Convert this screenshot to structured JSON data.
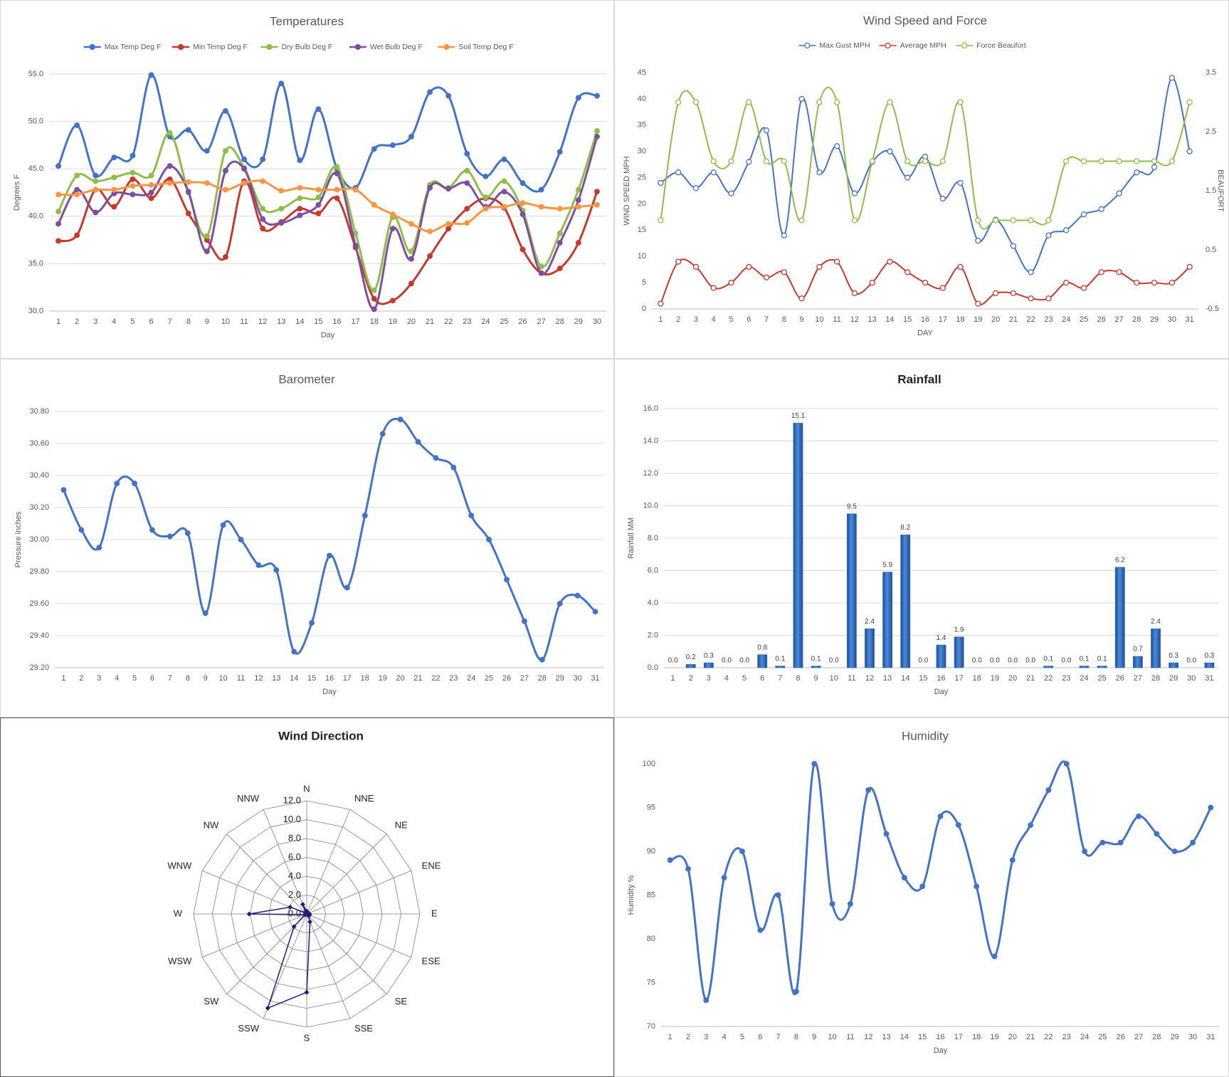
{
  "chart_data": [
    {
      "type": "line",
      "title": "Temperatures",
      "xlabel": "Day",
      "ylabel": "Degrees F",
      "categories": [
        1,
        2,
        3,
        4,
        5,
        6,
        7,
        8,
        9,
        10,
        11,
        12,
        13,
        14,
        15,
        16,
        17,
        18,
        19,
        20,
        21,
        22,
        23,
        24,
        25,
        26,
        27,
        28,
        29,
        30
      ],
      "series": [
        {
          "name": "Max Temp Deg F",
          "color": "#4472c4",
          "values": [
            45.3,
            49.6,
            44.3,
            46.2,
            46.4,
            54.9,
            48.4,
            49.1,
            46.9,
            51.1,
            46.0,
            46.0,
            54.0,
            45.9,
            51.3,
            45.0,
            43.0,
            47.1,
            47.5,
            48.4,
            53.1,
            52.7,
            46.6,
            44.2,
            46.0,
            43.5,
            42.8,
            46.8,
            52.5,
            52.7
          ]
        },
        {
          "name": "Min Temp Deg F",
          "color": "#c5392e",
          "values": [
            37.4,
            38.0,
            42.8,
            41.0,
            43.9,
            41.9,
            43.9,
            40.3,
            37.5,
            35.7,
            43.7,
            38.7,
            39.4,
            40.8,
            40.3,
            41.9,
            36.7,
            31.3,
            31.1,
            32.9,
            35.8,
            38.7,
            40.8,
            41.9,
            40.9,
            36.5,
            34.0,
            34.5,
            37.2,
            42.6
          ]
        },
        {
          "name": "Dry Bulb Deg F",
          "color": "#8fbc4a",
          "values": [
            40.5,
            44.3,
            43.7,
            44.1,
            44.6,
            44.3,
            48.8,
            42.5,
            37.9,
            46.9,
            45.1,
            40.8,
            40.8,
            41.9,
            42.0,
            45.2,
            38.2,
            32.2,
            39.9,
            36.3,
            43.3,
            43.0,
            44.8,
            42.0,
            43.7,
            40.6,
            34.7,
            38.2,
            42.8,
            49.0
          ]
        },
        {
          "name": "Wet Bulb Deg F",
          "color": "#7e4f9f",
          "values": [
            39.2,
            42.8,
            40.4,
            42.4,
            42.3,
            42.5,
            45.3,
            42.6,
            36.3,
            44.8,
            45.0,
            39.7,
            39.3,
            40.1,
            41.2,
            44.5,
            36.9,
            30.2,
            38.7,
            35.5,
            43.0,
            42.9,
            43.5,
            41.0,
            42.6,
            40.2,
            34.0,
            37.2,
            41.7,
            48.4
          ]
        },
        {
          "name": "Soil Temp Deg F",
          "color": "#f79646",
          "values": [
            42.3,
            42.3,
            42.8,
            42.8,
            43.2,
            43.3,
            43.5,
            43.6,
            43.5,
            42.8,
            43.5,
            43.7,
            42.7,
            43.0,
            42.8,
            42.8,
            42.8,
            41.2,
            40.2,
            39.2,
            38.4,
            39.2,
            39.3,
            40.8,
            41.0,
            41.4,
            41.0,
            40.8,
            41.0,
            41.2
          ]
        }
      ],
      "ylim": [
        30,
        55
      ],
      "yticks": [
        {
          "value": 30,
          "label": "30.0"
        },
        {
          "value": 35,
          "label": "35.0"
        },
        {
          "value": 40,
          "label": "40.0"
        },
        {
          "value": 45,
          "label": "45.0"
        },
        {
          "value": 50,
          "label": "50.0"
        },
        {
          "value": 55,
          "label": "55.0"
        }
      ],
      "grid": true,
      "legend": "top",
      "smooth": true,
      "markers": "filled"
    },
    {
      "type": "line",
      "title": "Wind Speed and Force",
      "xlabel": "DAY",
      "ylabel": "WIND SPEED MPH",
      "y2label": "BEAUFORT",
      "categories": [
        1,
        2,
        3,
        4,
        5,
        6,
        7,
        8,
        9,
        10,
        11,
        12,
        13,
        14,
        15,
        16,
        17,
        18,
        19,
        20,
        21,
        22,
        23,
        24,
        25,
        26,
        27,
        28,
        29,
        30,
        31
      ],
      "series": [
        {
          "name": "Max Gust MPH",
          "color": "#4472c4",
          "values": [
            24,
            26,
            23,
            26,
            22,
            28,
            34,
            14,
            40,
            26,
            31,
            22,
            28,
            30,
            25,
            29,
            21,
            24,
            13,
            17,
            12,
            7,
            14,
            15,
            18,
            19,
            22,
            26,
            27,
            44,
            30
          ]
        },
        {
          "name": "Average MPH",
          "color": "#c5392e",
          "values": [
            1,
            9,
            8,
            4,
            5,
            8,
            6,
            7,
            2,
            8,
            9,
            3,
            5,
            9,
            7,
            5,
            4,
            8,
            1,
            3,
            3,
            2,
            2,
            5,
            4,
            7,
            7,
            5,
            5,
            5,
            8
          ]
        },
        {
          "name": "Force Beaufort",
          "color": "#8fbc4a",
          "axis": "y2",
          "values": [
            1,
            3,
            3,
            2,
            2,
            3,
            2,
            2,
            1,
            3,
            3,
            1,
            2,
            3,
            2,
            2,
            2,
            3,
            1,
            1,
            1,
            1,
            1,
            2,
            2,
            2,
            2,
            2,
            2,
            2,
            3
          ]
        }
      ],
      "ylim": [
        0,
        45
      ],
      "yticks": [
        0,
        5,
        10,
        15,
        20,
        25,
        30,
        35,
        40,
        45
      ],
      "y2lim": [
        -0.5,
        3.5
      ],
      "y2ticks": [
        -0.5,
        0.5,
        1.5,
        2.5,
        3.5
      ],
      "grid": false,
      "legend": "top",
      "smooth": true,
      "markers": "hollow"
    },
    {
      "type": "line",
      "title": "Barometer",
      "xlabel": "Day",
      "ylabel": "Pressure inches",
      "categories": [
        1,
        2,
        3,
        4,
        5,
        6,
        7,
        8,
        9,
        10,
        11,
        12,
        13,
        14,
        15,
        16,
        17,
        18,
        19,
        20,
        21,
        22,
        23,
        24,
        25,
        26,
        27,
        28,
        29,
        30,
        31
      ],
      "series": [
        {
          "name": "Pressure",
          "color": "#4472c4",
          "values": [
            30.31,
            30.06,
            29.95,
            30.35,
            30.35,
            30.06,
            30.02,
            30.04,
            29.54,
            30.09,
            30.0,
            29.84,
            29.81,
            29.3,
            29.48,
            29.9,
            29.7,
            30.15,
            30.66,
            30.75,
            30.61,
            30.51,
            30.45,
            30.15,
            30.0,
            29.75,
            29.49,
            29.25,
            29.6,
            29.65,
            29.55
          ]
        }
      ],
      "ylim": [
        29.2,
        30.8
      ],
      "yticks": [
        {
          "value": 29.2,
          "label": "29.20"
        },
        {
          "value": 29.4,
          "label": "29.40"
        },
        {
          "value": 29.6,
          "label": "29.60"
        },
        {
          "value": 29.8,
          "label": "29.80"
        },
        {
          "value": 30.0,
          "label": "30.00"
        },
        {
          "value": 30.2,
          "label": "30.20"
        },
        {
          "value": 30.4,
          "label": "30.40"
        },
        {
          "value": 30.6,
          "label": "30.60"
        },
        {
          "value": 30.8,
          "label": "30.80"
        }
      ],
      "grid": true,
      "smooth": true,
      "markers": "filled"
    },
    {
      "type": "bar",
      "title": "Rainfall",
      "xlabel": "Day",
      "ylabel": "Rainfall MM",
      "categories": [
        1,
        2,
        3,
        4,
        5,
        6,
        7,
        8,
        9,
        10,
        11,
        12,
        13,
        14,
        15,
        16,
        17,
        18,
        19,
        20,
        21,
        22,
        23,
        24,
        25,
        26,
        27,
        28,
        29,
        30,
        31
      ],
      "values": [
        0.0,
        0.2,
        0.3,
        0.0,
        0.0,
        0.8,
        0.1,
        15.1,
        0.1,
        0.0,
        9.5,
        2.4,
        5.9,
        8.2,
        0.0,
        1.4,
        1.9,
        0.0,
        0.0,
        0.0,
        0.0,
        0.1,
        0.0,
        0.1,
        0.1,
        6.2,
        0.7,
        2.4,
        0.3,
        0.0,
        0.3
      ],
      "value_labels": [
        "0.0",
        "0.2",
        "0.3",
        "0.0",
        "0.0",
        "0.8",
        "0.1",
        "15.1",
        "0.1",
        "0.0",
        "9.5",
        "2.4",
        "5.9",
        "8.2",
        "0.0",
        "1.4",
        "1.9",
        "0.0",
        "0.0",
        "0.0",
        "0.0",
        "0.1",
        "0.0",
        "0.1",
        "0.1",
        "6.2",
        "0.7",
        "2.4",
        "0.3",
        "0.0",
        "0.3"
      ],
      "color": "#2f6fc2",
      "ylim": [
        0,
        16
      ],
      "yticks": [
        {
          "value": 0,
          "label": "0.0"
        },
        {
          "value": 2,
          "label": "2.0"
        },
        {
          "value": 4,
          "label": "4.0"
        },
        {
          "value": 6,
          "label": "6.0"
        },
        {
          "value": 8,
          "label": "8.0"
        },
        {
          "value": 10,
          "label": "10.0"
        },
        {
          "value": 12,
          "label": "12.0"
        },
        {
          "value": 14,
          "label": "14.0"
        },
        {
          "value": 16,
          "label": "16.0"
        }
      ],
      "grid": true
    },
    {
      "type": "radar",
      "title": "Wind Direction",
      "categories": [
        "N",
        "NNE",
        "NE",
        "ENE",
        "E",
        "ESE",
        "SE",
        "SSE",
        "S",
        "SSW",
        "SW",
        "WSW",
        "W",
        "WNW",
        "NW",
        "NNW"
      ],
      "values": [
        0.3,
        0.2,
        0.0,
        0.0,
        0.3,
        0.3,
        0.3,
        0.9,
        8.3,
        10.8,
        1.9,
        0.2,
        6.1,
        1.9,
        0.2,
        1.1
      ],
      "color": "#1f1f7a",
      "rlim": [
        0,
        12
      ],
      "rticks": [
        {
          "value": 0,
          "label": "0.0"
        },
        {
          "value": 2,
          "label": "2.0"
        },
        {
          "value": 4,
          "label": "4.0"
        },
        {
          "value": 6,
          "label": "6.0"
        },
        {
          "value": 8,
          "label": "8.0"
        },
        {
          "value": 10,
          "label": "10.0"
        },
        {
          "value": 12,
          "label": "12.0"
        }
      ]
    },
    {
      "type": "line",
      "title": "Humidity",
      "xlabel": "Day",
      "ylabel": "Humidity %",
      "categories": [
        1,
        2,
        3,
        4,
        5,
        6,
        7,
        8,
        9,
        10,
        11,
        12,
        13,
        14,
        15,
        16,
        17,
        18,
        19,
        20,
        21,
        22,
        23,
        24,
        25,
        26,
        27,
        28,
        29,
        30,
        31
      ],
      "series": [
        {
          "name": "Humidity",
          "color": "#4472c4",
          "values": [
            89,
            88,
            73,
            87,
            90,
            81,
            85,
            74,
            100,
            84,
            84,
            97,
            92,
            87,
            86,
            94,
            93,
            86,
            78,
            89,
            93,
            97,
            100,
            90,
            91,
            91,
            94,
            92,
            90,
            91,
            95
          ]
        }
      ],
      "ylim": [
        70,
        100
      ],
      "yticks": [
        70,
        75,
        80,
        85,
        90,
        95,
        100
      ],
      "grid": false,
      "smooth": true,
      "markers": "filled"
    }
  ]
}
